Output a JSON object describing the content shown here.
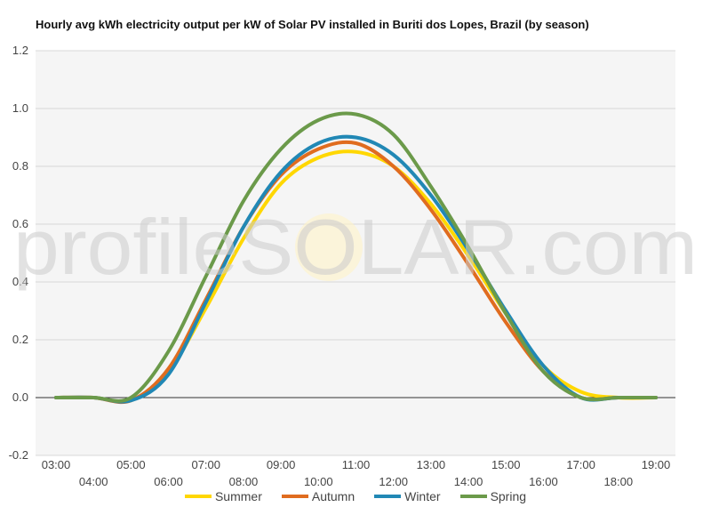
{
  "chart_data": {
    "type": "line",
    "title": "Hourly avg kWh electricity output per kW of Solar PV installed in Buriti dos Lopes, Brazil (by season)",
    "xlabel": "",
    "ylabel": "",
    "x": [
      "03:00",
      "04:00",
      "05:00",
      "06:00",
      "07:00",
      "08:00",
      "09:00",
      "10:00",
      "11:00",
      "12:00",
      "13:00",
      "14:00",
      "15:00",
      "16:00",
      "17:00",
      "18:00",
      "19:00"
    ],
    "ylim": [
      -0.2,
      1.2
    ],
    "yticks": [
      "-0.2",
      "0.0",
      "0.2",
      "0.4",
      "0.6",
      "0.8",
      "1.0",
      "1.2"
    ],
    "grid": true,
    "legend_position": "bottom",
    "series": [
      {
        "name": "Summer",
        "color": "#ffd700",
        "values": [
          0,
          0,
          -0.01,
          0.09,
          0.31,
          0.55,
          0.74,
          0.83,
          0.85,
          0.8,
          0.67,
          0.49,
          0.29,
          0.11,
          0.02,
          0,
          0
        ]
      },
      {
        "name": "Autumn",
        "color": "#e06c1f",
        "values": [
          0,
          0,
          -0.01,
          0.1,
          0.34,
          0.59,
          0.77,
          0.86,
          0.88,
          0.8,
          0.65,
          0.46,
          0.26,
          0.09,
          0.0,
          0,
          0
        ]
      },
      {
        "name": "Winter",
        "color": "#2188b5",
        "values": [
          0,
          0,
          -0.01,
          0.08,
          0.33,
          0.59,
          0.78,
          0.88,
          0.9,
          0.84,
          0.7,
          0.51,
          0.3,
          0.11,
          0.0,
          0,
          0
        ]
      },
      {
        "name": "Spring",
        "color": "#6b9a4a",
        "values": [
          0,
          0,
          0,
          0.16,
          0.42,
          0.68,
          0.86,
          0.96,
          0.98,
          0.91,
          0.73,
          0.52,
          0.29,
          0.09,
          0.0,
          0,
          0
        ]
      }
    ]
  },
  "watermark": {
    "text_left": "profileS",
    "text_right": "LAR.com",
    "text_full": "profileSOLAR.com"
  }
}
